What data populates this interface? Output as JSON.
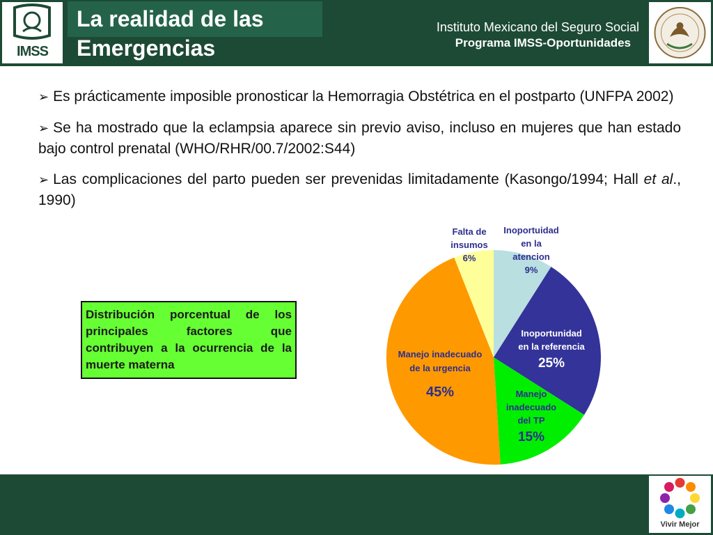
{
  "header": {
    "logo_text": "IMSS",
    "title_line1": "La realidad de las",
    "title_line2": "Emergencias",
    "institution": "Instituto Mexicano del Seguro Social",
    "program": "Programa IMSS-Oportunidades"
  },
  "bullets": [
    {
      "text": "Es prácticamente imposible pronosticar la Hemorragia Obstétrica en el postparto (UNFPA 2002)"
    },
    {
      "text": "Se ha mostrado que la eclampsia aparece sin previo aviso, incluso en mujeres que han estado bajo control prenatal (WHO/RHR/00.7/2002:S44)"
    },
    {
      "text_before": "Las complicaciones del parto pueden ser prevenidas limitadamente (Kasongo/1994; Hall ",
      "italic": "et al",
      "text_after": "., 1990)"
    }
  ],
  "description_box": "Distribución porcentual de los principales factores que contribuyen a la ocurrencia de la muerte materna",
  "chart_data": {
    "type": "pie",
    "start_angle_deg": 0,
    "direction": "clockwise",
    "slices": [
      {
        "label_lines": [
          "Inoportuidad",
          "en la",
          "atencion"
        ],
        "value": 9,
        "display": "9%",
        "color": "#b9dfe0"
      },
      {
        "label_lines": [
          "Inoportunidad",
          "en la referencia"
        ],
        "value": 25,
        "display": "25%",
        "color": "#333399"
      },
      {
        "label_lines": [
          "Manejo",
          "inadecuado",
          "del TP"
        ],
        "value": 15,
        "display": "15%",
        "color": "#00ee00"
      },
      {
        "label_lines": [
          "Manejo inadecuado",
          "de la urgencia"
        ],
        "value": 45,
        "display": "45%",
        "color": "#ff9900"
      },
      {
        "label_lines": [
          "Falta de",
          "insumos"
        ],
        "value": 6,
        "display": "6%",
        "color": "#ffff99"
      }
    ]
  },
  "footer": {
    "brand": "Vivir Mejor"
  }
}
